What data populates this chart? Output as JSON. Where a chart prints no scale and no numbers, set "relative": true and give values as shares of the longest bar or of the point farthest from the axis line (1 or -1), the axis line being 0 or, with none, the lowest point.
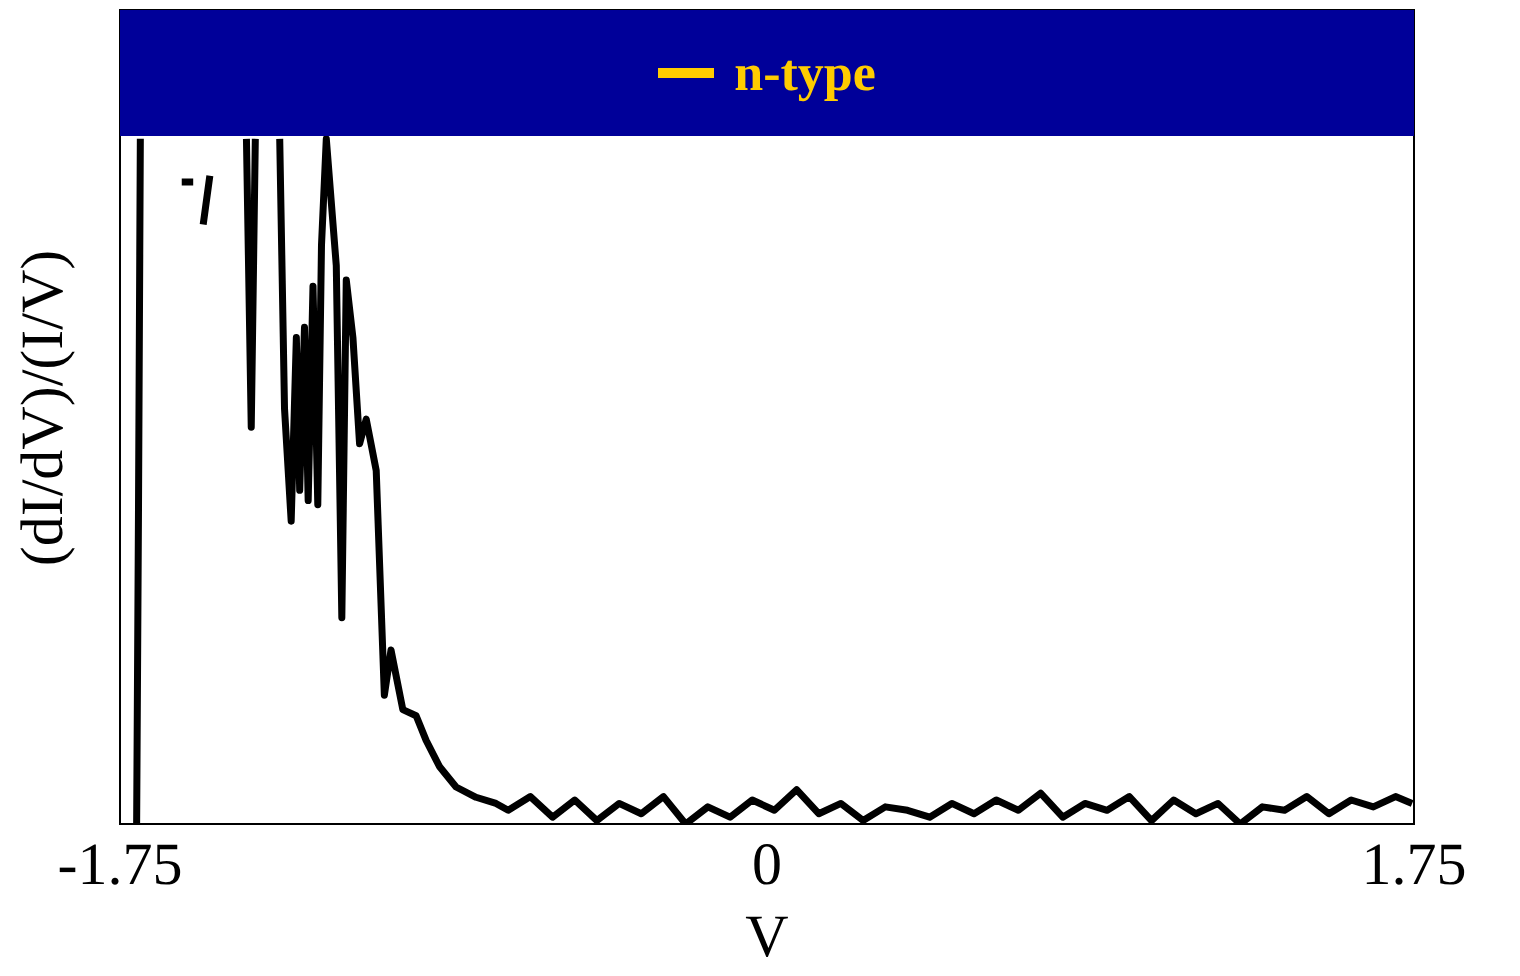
{
  "chart_data": {
    "type": "line",
    "title": "n-type",
    "xlabel": "V",
    "ylabel": "(dI/dV)/(I/V)",
    "relative": true,
    "color": "#000000",
    "x": [
      -1.705,
      -1.7,
      -1.695,
      -1.642,
      -1.583,
      -1.552,
      -1.54,
      -1.525,
      -1.507,
      -1.48,
      -1.408,
      -1.395,
      -1.384,
      -1.361,
      -1.318,
      -1.305,
      -1.287,
      -1.273,
      -1.264,
      -1.251,
      -1.241,
      -1.228,
      -1.215,
      -1.205,
      -1.192,
      -1.165,
      -1.15,
      -1.138,
      -1.12,
      -1.102,
      -1.084,
      -1.057,
      -1.035,
      -1.017,
      -0.985,
      -0.949,
      -0.922,
      -0.886,
      -0.841,
      -0.787,
      -0.733,
      -0.7,
      -0.64,
      -0.58,
      -0.52,
      -0.46,
      -0.4,
      -0.34,
      -0.28,
      -0.22,
      -0.16,
      -0.1,
      -0.04,
      0.02,
      0.08,
      0.14,
      0.2,
      0.26,
      0.32,
      0.38,
      0.44,
      0.5,
      0.56,
      0.62,
      0.68,
      0.74,
      0.8,
      0.86,
      0.92,
      0.98,
      1.04,
      1.1,
      1.16,
      1.22,
      1.28,
      1.34,
      1.4,
      1.46,
      1.52,
      1.58,
      1.64,
      1.7,
      1.745
    ],
    "values": [
      0,
      0.457,
      1,
      null,
      0.937,
      0.937,
      null,
      0.875,
      0.946,
      null,
      1,
      0.579,
      1,
      null,
      1,
      0.606,
      0.442,
      0.71,
      0.487,
      0.725,
      0.472,
      0.785,
      0.466,
      0.845,
      1,
      0.815,
      0.301,
      0.794,
      0.71,
      0.555,
      0.591,
      0.516,
      0.188,
      0.254,
      0.167,
      0.158,
      0.122,
      0.084,
      0.054,
      0.039,
      0.03,
      0.02,
      0.04,
      0.01,
      0.035,
      0.005,
      0.03,
      0.015,
      0.04,
      0,
      0.025,
      0.01,
      0.035,
      0.02,
      0.05,
      0.015,
      0.03,
      0.005,
      0.025,
      0.02,
      0.01,
      0.03,
      0.015,
      0.035,
      0.02,
      0.045,
      0.01,
      0.03,
      0.02,
      0.04,
      0.005,
      0.035,
      0.015,
      0.03,
      0,
      0.025,
      0.02,
      0.04,
      0.015,
      0.035,
      0.025,
      0.04,
      0.03
    ],
    "xlim": [
      -1.75,
      1.75
    ],
    "xticks": [
      -1.75,
      0,
      1.75
    ],
    "grid": false
  }
}
